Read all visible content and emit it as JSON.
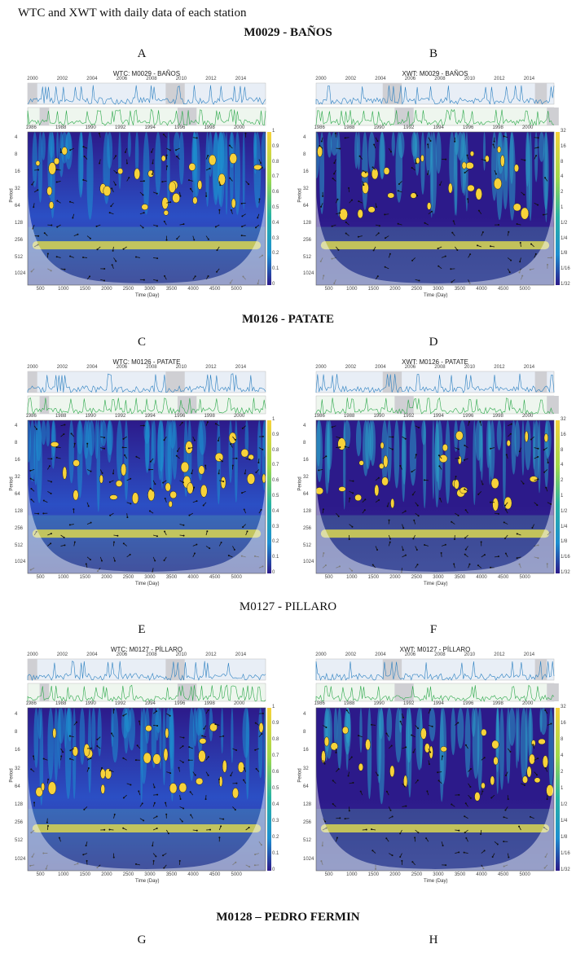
{
  "heading": "WTC and XWT with daily data of each station",
  "stations": [
    {
      "title": "M0029 - BAÑOS",
      "bold": true,
      "left_letter": "A",
      "right_letter": "B",
      "left_fig": {
        "title": "WTC: M0029 - BAÑOS",
        "xticks": [
          "500",
          "1000",
          "1500",
          "2000",
          "2500",
          "3000",
          "3500",
          "4000",
          "4500",
          "5000"
        ]
      },
      "right_fig": {
        "title": "XWT: M0029 - BAÑOS",
        "xticks": [
          "500",
          "1000",
          "1500",
          "2000",
          "2500",
          "3000",
          "3500",
          "4000",
          "4500",
          "5000"
        ]
      }
    },
    {
      "title": "M0126 - PATATE",
      "bold": true,
      "left_letter": "C",
      "right_letter": "D",
      "left_fig": {
        "title": "WTC: M0126 - PATATE",
        "xticks": [
          "500",
          "1000",
          "1500",
          "2000",
          "2500",
          "3000",
          "3500",
          "4000",
          "4500",
          "5000"
        ]
      },
      "right_fig": {
        "title": "XWT: M0126 - PATATE",
        "xticks": [
          "500",
          "1000",
          "1500",
          "2000",
          "2500",
          "3000",
          "3500",
          "4000",
          "4500",
          "5000"
        ]
      }
    },
    {
      "title": "M0127 - PILLARO",
      "bold": false,
      "left_letter": "E",
      "right_letter": "F",
      "left_fig": {
        "title": "WTC: M0127 - PÍLLARO",
        "xticks": [
          "500",
          "1000",
          "1500",
          "2000",
          "2500",
          "3000",
          "3500",
          "4000",
          "4500",
          "5000"
        ]
      },
      "right_fig": {
        "title": "XWT: M0127 - PÍLLARO",
        "xticks": [
          "500",
          "1000",
          "1500",
          "2000",
          "2500",
          "3000",
          "3500",
          "4000",
          "4500",
          "5000"
        ]
      }
    },
    {
      "title": "M0128 – PEDRO FERMIN",
      "bold": true,
      "left_letter": "G",
      "right_letter": "H"
    }
  ],
  "common": {
    "xlabel": "Time (Day)",
    "ylabel": "Period",
    "yticks": [
      "4",
      "8",
      "16",
      "32",
      "64",
      "128",
      "256",
      "512",
      "1024"
    ],
    "top_years_a": [
      "2000",
      "2002",
      "2004",
      "2006",
      "2008",
      "2010",
      "2012",
      "2014"
    ],
    "top_years_b": [
      "1986",
      "1988",
      "1990",
      "1992",
      "1994",
      "1996",
      "1998",
      "2000"
    ],
    "wtc_colorbar": [
      "1",
      "0.9",
      "0.8",
      "0.7",
      "0.6",
      "0.5",
      "0.4",
      "0.3",
      "0.2",
      "0.1",
      "0"
    ],
    "xwt_colorbar": [
      "32",
      "16",
      "8",
      "4",
      "2",
      "1",
      "1/2",
      "1/4",
      "1/8",
      "1/16",
      "1/32"
    ]
  },
  "colors": {
    "low": "#2c1a8a",
    "mid": "#1e8fd0",
    "high": "#f7d23a",
    "series_top": "#2a7fc0",
    "series_bottom": "#2ca84a"
  }
}
